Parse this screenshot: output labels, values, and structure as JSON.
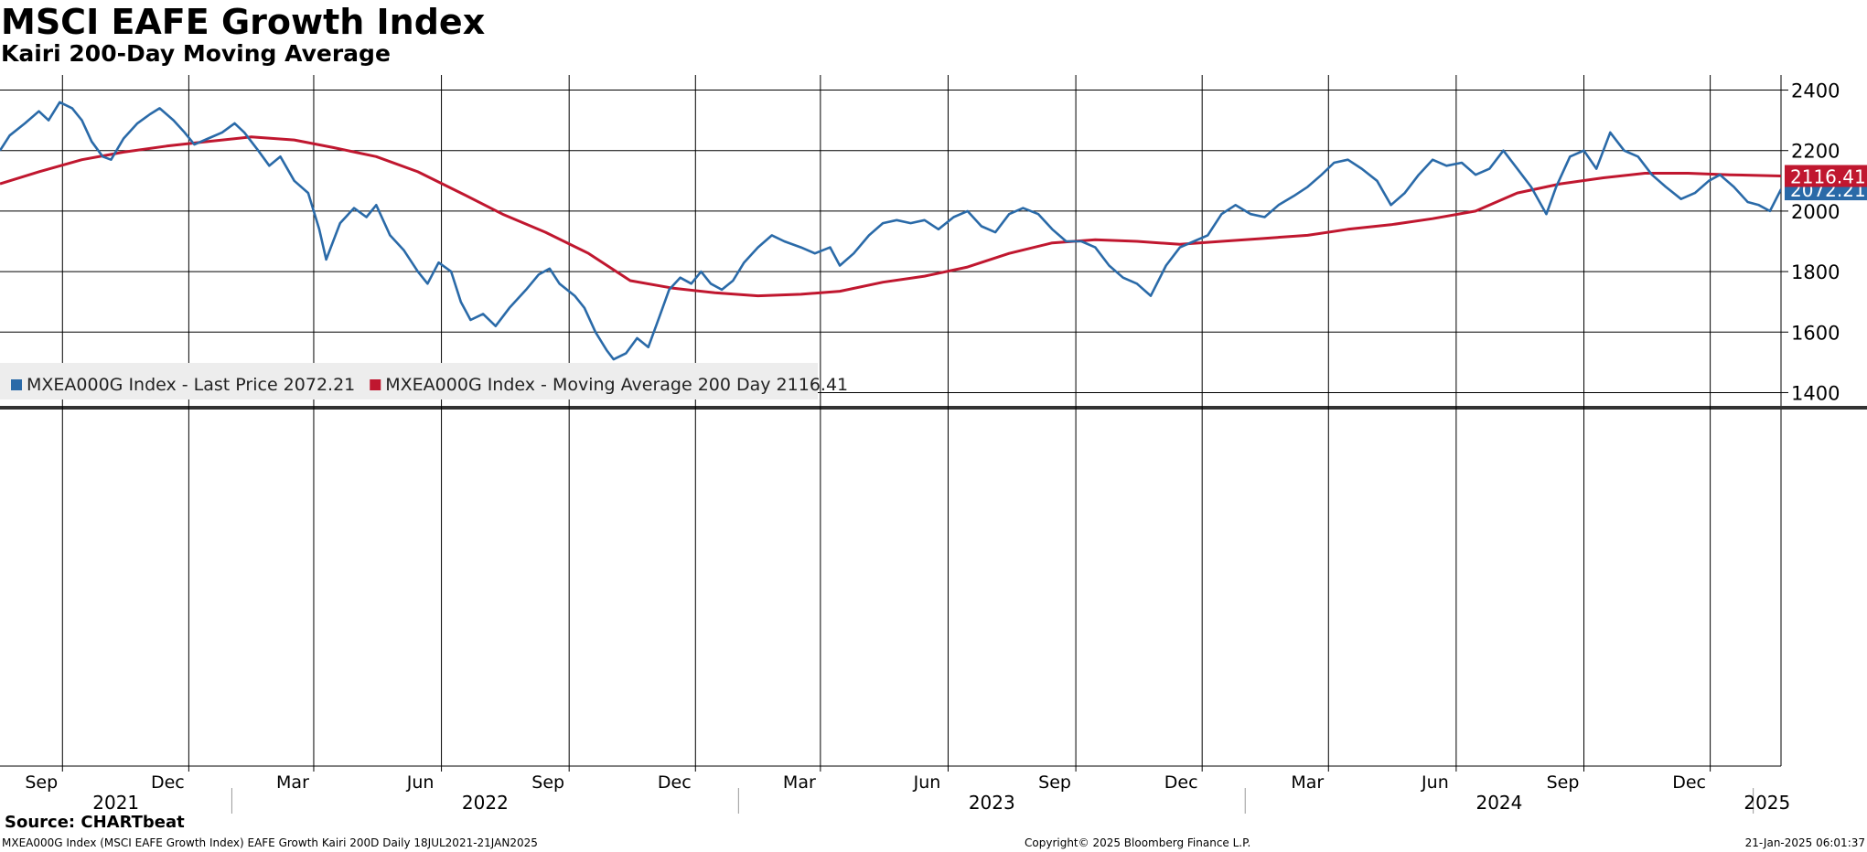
{
  "chart_data": {
    "type": "line",
    "title": "MSCI EAFE Growth Index",
    "subtitle": "Kairi 200-Day Moving Average",
    "x_range": [
      "2021-07-18",
      "2025-01-21"
    ],
    "ylim": [
      1350,
      2450
    ],
    "y_ticks": [
      "1400",
      "1600",
      "1800",
      "2000",
      "2200",
      "2400"
    ],
    "grid": true,
    "legend_position": "bottom-left of upper panel",
    "month_ticks": [
      {
        "label": "Sep",
        "date": "2021-09-01"
      },
      {
        "label": "Dec",
        "date": "2021-12-01"
      },
      {
        "label": "Mar",
        "date": "2022-03-01"
      },
      {
        "label": "Jun",
        "date": "2022-06-01"
      },
      {
        "label": "Sep",
        "date": "2022-09-01"
      },
      {
        "label": "Dec",
        "date": "2022-12-01"
      },
      {
        "label": "Mar",
        "date": "2023-03-01"
      },
      {
        "label": "Jun",
        "date": "2023-06-01"
      },
      {
        "label": "Sep",
        "date": "2023-09-01"
      },
      {
        "label": "Dec",
        "date": "2023-12-01"
      },
      {
        "label": "Mar",
        "date": "2024-03-01"
      },
      {
        "label": "Jun",
        "date": "2024-06-01"
      },
      {
        "label": "Sep",
        "date": "2024-09-01"
      },
      {
        "label": "Dec",
        "date": "2024-12-01"
      }
    ],
    "year_ticks": [
      {
        "label": "2021",
        "start": "2021-07-18",
        "end": "2022-01-01"
      },
      {
        "label": "2022",
        "start": "2022-01-01",
        "end": "2023-01-01"
      },
      {
        "label": "2023",
        "start": "2023-01-01",
        "end": "2024-01-01"
      },
      {
        "label": "2024",
        "start": "2024-01-01",
        "end": "2025-01-01"
      },
      {
        "label": "2025",
        "start": "2025-01-01",
        "end": "2025-01-21"
      }
    ],
    "series": [
      {
        "name": "MXEA000G Index - Last Price 2072.21",
        "color": "#2a6aa8",
        "last_value": "2072.21",
        "points": [
          [
            "2021-07-18",
            2200
          ],
          [
            "2021-07-25",
            2250
          ],
          [
            "2021-08-05",
            2290
          ],
          [
            "2021-08-15",
            2330
          ],
          [
            "2021-08-22",
            2300
          ],
          [
            "2021-08-30",
            2360
          ],
          [
            "2021-09-08",
            2340
          ],
          [
            "2021-09-15",
            2300
          ],
          [
            "2021-09-22",
            2230
          ],
          [
            "2021-09-30",
            2180
          ],
          [
            "2021-10-06",
            2170
          ],
          [
            "2021-10-15",
            2240
          ],
          [
            "2021-10-25",
            2290
          ],
          [
            "2021-11-03",
            2320
          ],
          [
            "2021-11-10",
            2340
          ],
          [
            "2021-11-20",
            2300
          ],
          [
            "2021-11-28",
            2260
          ],
          [
            "2021-12-05",
            2220
          ],
          [
            "2021-12-15",
            2240
          ],
          [
            "2021-12-25",
            2260
          ],
          [
            "2022-01-03",
            2290
          ],
          [
            "2022-01-10",
            2260
          ],
          [
            "2022-01-20",
            2200
          ],
          [
            "2022-01-28",
            2150
          ],
          [
            "2022-02-05",
            2180
          ],
          [
            "2022-02-15",
            2100
          ],
          [
            "2022-02-25",
            2060
          ],
          [
            "2022-03-05",
            1940
          ],
          [
            "2022-03-10",
            1840
          ],
          [
            "2022-03-20",
            1960
          ],
          [
            "2022-03-30",
            2010
          ],
          [
            "2022-04-08",
            1980
          ],
          [
            "2022-04-15",
            2020
          ],
          [
            "2022-04-25",
            1920
          ],
          [
            "2022-05-05",
            1870
          ],
          [
            "2022-05-15",
            1800
          ],
          [
            "2022-05-22",
            1760
          ],
          [
            "2022-05-30",
            1830
          ],
          [
            "2022-06-08",
            1800
          ],
          [
            "2022-06-15",
            1700
          ],
          [
            "2022-06-22",
            1640
          ],
          [
            "2022-07-01",
            1660
          ],
          [
            "2022-07-10",
            1620
          ],
          [
            "2022-07-20",
            1680
          ],
          [
            "2022-08-01",
            1740
          ],
          [
            "2022-08-10",
            1790
          ],
          [
            "2022-08-18",
            1810
          ],
          [
            "2022-08-25",
            1760
          ],
          [
            "2022-09-05",
            1720
          ],
          [
            "2022-09-12",
            1680
          ],
          [
            "2022-09-20",
            1600
          ],
          [
            "2022-09-28",
            1540
          ],
          [
            "2022-10-03",
            1510
          ],
          [
            "2022-10-12",
            1530
          ],
          [
            "2022-10-20",
            1580
          ],
          [
            "2022-10-28",
            1550
          ],
          [
            "2022-11-05",
            1650
          ],
          [
            "2022-11-12",
            1740
          ],
          [
            "2022-11-20",
            1780
          ],
          [
            "2022-11-28",
            1760
          ],
          [
            "2022-12-05",
            1800
          ],
          [
            "2022-12-12",
            1760
          ],
          [
            "2022-12-20",
            1740
          ],
          [
            "2022-12-28",
            1770
          ],
          [
            "2023-01-05",
            1830
          ],
          [
            "2023-01-15",
            1880
          ],
          [
            "2023-01-25",
            1920
          ],
          [
            "2023-02-03",
            1900
          ],
          [
            "2023-02-15",
            1880
          ],
          [
            "2023-02-25",
            1860
          ],
          [
            "2023-03-08",
            1880
          ],
          [
            "2023-03-15",
            1820
          ],
          [
            "2023-03-25",
            1860
          ],
          [
            "2023-04-05",
            1920
          ],
          [
            "2023-04-15",
            1960
          ],
          [
            "2023-04-25",
            1970
          ],
          [
            "2023-05-05",
            1960
          ],
          [
            "2023-05-15",
            1970
          ],
          [
            "2023-05-25",
            1940
          ],
          [
            "2023-06-05",
            1980
          ],
          [
            "2023-06-15",
            2000
          ],
          [
            "2023-06-25",
            1950
          ],
          [
            "2023-07-05",
            1930
          ],
          [
            "2023-07-15",
            1990
          ],
          [
            "2023-07-25",
            2010
          ],
          [
            "2023-08-05",
            1990
          ],
          [
            "2023-08-15",
            1940
          ],
          [
            "2023-08-25",
            1900
          ],
          [
            "2023-09-05",
            1900
          ],
          [
            "2023-09-15",
            1880
          ],
          [
            "2023-09-25",
            1820
          ],
          [
            "2023-10-05",
            1780
          ],
          [
            "2023-10-15",
            1760
          ],
          [
            "2023-10-25",
            1720
          ],
          [
            "2023-11-05",
            1820
          ],
          [
            "2023-11-15",
            1880
          ],
          [
            "2023-11-25",
            1900
          ],
          [
            "2023-12-05",
            1920
          ],
          [
            "2023-12-15",
            1990
          ],
          [
            "2023-12-25",
            2020
          ],
          [
            "2024-01-05",
            1990
          ],
          [
            "2024-01-15",
            1980
          ],
          [
            "2024-01-25",
            2020
          ],
          [
            "2024-02-05",
            2050
          ],
          [
            "2024-02-15",
            2080
          ],
          [
            "2024-02-25",
            2120
          ],
          [
            "2024-03-05",
            2160
          ],
          [
            "2024-03-15",
            2170
          ],
          [
            "2024-03-25",
            2140
          ],
          [
            "2024-04-05",
            2100
          ],
          [
            "2024-04-15",
            2020
          ],
          [
            "2024-04-25",
            2060
          ],
          [
            "2024-05-05",
            2120
          ],
          [
            "2024-05-15",
            2170
          ],
          [
            "2024-05-25",
            2150
          ],
          [
            "2024-06-05",
            2160
          ],
          [
            "2024-06-15",
            2120
          ],
          [
            "2024-06-25",
            2140
          ],
          [
            "2024-07-05",
            2200
          ],
          [
            "2024-07-15",
            2140
          ],
          [
            "2024-07-25",
            2080
          ],
          [
            "2024-08-05",
            1990
          ],
          [
            "2024-08-12",
            2080
          ],
          [
            "2024-08-22",
            2180
          ],
          [
            "2024-09-01",
            2200
          ],
          [
            "2024-09-10",
            2140
          ],
          [
            "2024-09-20",
            2260
          ],
          [
            "2024-09-30",
            2200
          ],
          [
            "2024-10-10",
            2180
          ],
          [
            "2024-10-20",
            2120
          ],
          [
            "2024-10-30",
            2080
          ],
          [
            "2024-11-10",
            2040
          ],
          [
            "2024-11-20",
            2060
          ],
          [
            "2024-11-30",
            2100
          ],
          [
            "2024-12-08",
            2120
          ],
          [
            "2024-12-18",
            2080
          ],
          [
            "2024-12-28",
            2030
          ],
          [
            "2025-01-05",
            2020
          ],
          [
            "2025-01-13",
            2000
          ],
          [
            "2025-01-21",
            2072
          ]
        ]
      },
      {
        "name": "MXEA000G Index - Moving Average 200 Day 2116.41",
        "color": "#c0172f",
        "last_value": "2116.41",
        "points": [
          [
            "2021-07-18",
            2090
          ],
          [
            "2021-08-15",
            2130
          ],
          [
            "2021-09-15",
            2170
          ],
          [
            "2021-10-15",
            2195
          ],
          [
            "2021-11-15",
            2215
          ],
          [
            "2021-12-15",
            2230
          ],
          [
            "2022-01-15",
            2245
          ],
          [
            "2022-02-15",
            2235
          ],
          [
            "2022-03-15",
            2210
          ],
          [
            "2022-04-15",
            2180
          ],
          [
            "2022-05-15",
            2130
          ],
          [
            "2022-06-15",
            2060
          ],
          [
            "2022-07-15",
            1990
          ],
          [
            "2022-08-15",
            1930
          ],
          [
            "2022-09-15",
            1860
          ],
          [
            "2022-10-15",
            1770
          ],
          [
            "2022-11-15",
            1745
          ],
          [
            "2022-12-15",
            1730
          ],
          [
            "2023-01-15",
            1720
          ],
          [
            "2023-02-15",
            1725
          ],
          [
            "2023-03-15",
            1735
          ],
          [
            "2023-04-15",
            1765
          ],
          [
            "2023-05-15",
            1785
          ],
          [
            "2023-06-15",
            1815
          ],
          [
            "2023-07-15",
            1860
          ],
          [
            "2023-08-15",
            1895
          ],
          [
            "2023-09-15",
            1905
          ],
          [
            "2023-10-15",
            1900
          ],
          [
            "2023-11-15",
            1890
          ],
          [
            "2023-12-15",
            1900
          ],
          [
            "2024-01-15",
            1910
          ],
          [
            "2024-02-15",
            1920
          ],
          [
            "2024-03-15",
            1940
          ],
          [
            "2024-04-15",
            1955
          ],
          [
            "2024-05-15",
            1975
          ],
          [
            "2024-06-15",
            2000
          ],
          [
            "2024-07-15",
            2060
          ],
          [
            "2024-08-15",
            2090
          ],
          [
            "2024-09-15",
            2110
          ],
          [
            "2024-10-15",
            2125
          ],
          [
            "2024-11-15",
            2125
          ],
          [
            "2024-12-15",
            2120
          ],
          [
            "2025-01-21",
            2116
          ]
        ]
      }
    ]
  },
  "footer": {
    "source": "Source: CHARTbeat",
    "left": "MXEA000G Index (MSCI EAFE Growth Index) EAFE Growth Kairi 200D  Daily 18JUL2021-21JAN2025",
    "center": "Copyright© 2025 Bloomberg Finance L.P.",
    "right": "21-Jan-2025 06:01:37"
  }
}
